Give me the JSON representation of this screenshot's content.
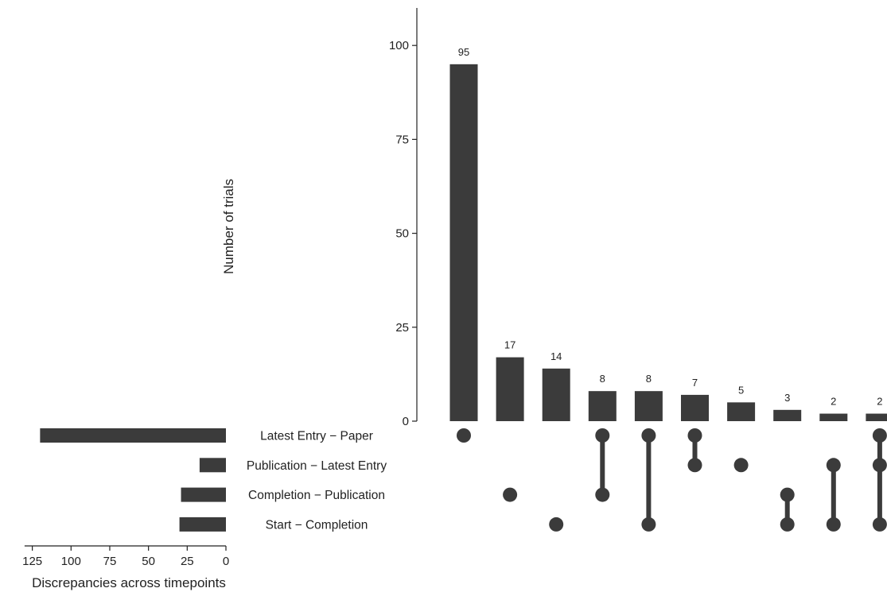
{
  "chart_data": {
    "type": "bar",
    "subtype": "upset",
    "intersections": {
      "ylabel": "Number of trials",
      "ylim": [
        0,
        110
      ],
      "yticks": [
        0,
        25,
        50,
        75,
        100
      ],
      "values": [
        95,
        17,
        14,
        8,
        8,
        7,
        5,
        3,
        2,
        2
      ],
      "data_labels": [
        "95",
        "17",
        "14",
        "8",
        "8",
        "7",
        "5",
        "3",
        "2",
        "2"
      ],
      "memberships": [
        [
          "Latest Entry − Paper"
        ],
        [
          "Completion − Publication"
        ],
        [
          "Start − Completion"
        ],
        [
          "Latest Entry − Paper",
          "Completion − Publication"
        ],
        [
          "Latest Entry − Paper",
          "Start − Completion"
        ],
        [
          "Latest Entry − Paper",
          "Publication − Latest Entry"
        ],
        [
          "Publication − Latest Entry"
        ],
        [
          "Completion − Publication",
          "Start − Completion"
        ],
        [
          "Publication − Latest Entry",
          "Start − Completion"
        ],
        [
          "Latest Entry − Paper",
          "Publication − Latest Entry",
          "Start − Completion"
        ]
      ]
    },
    "sets": {
      "names": [
        "Latest Entry − Paper",
        "Publication − Latest Entry",
        "Completion − Publication",
        "Start − Completion"
      ],
      "display_labels": [
        "Latest Entry − Paper",
        "Publication − Latest Entry",
        "Completion − Publication",
        "Start − Completion"
      ],
      "values": [
        120,
        17,
        29,
        30
      ],
      "xlabel": "Discrepancies across timepoints",
      "xlim": [
        130,
        0
      ],
      "xticks": [
        125,
        100,
        75,
        50,
        25,
        0
      ]
    },
    "colors": {
      "bar": "#3b3b3b",
      "dot": "#3b3b3b",
      "axis": "#222222"
    }
  }
}
